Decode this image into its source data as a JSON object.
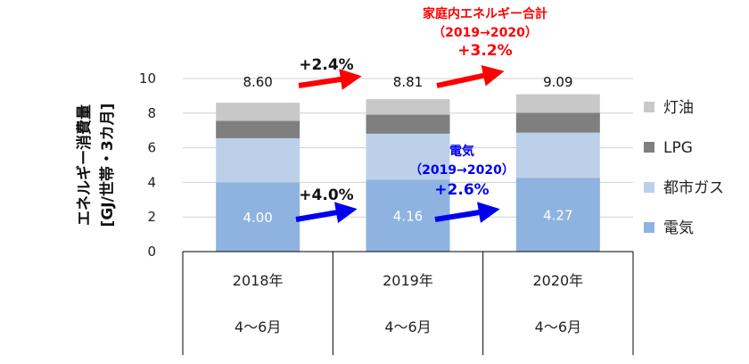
{
  "chart_data": {
    "type": "bar",
    "stacked": true,
    "ylabel_lines": [
      "エネルギー消費量",
      "[GJ/世帯・3カ月]"
    ],
    "ylim": [
      0,
      10
    ],
    "yticks": [
      0,
      2,
      4,
      6,
      8,
      10
    ],
    "categories": [
      {
        "year": "2018年",
        "period": "4〜6月"
      },
      {
        "year": "2019年",
        "period": "4〜6月"
      },
      {
        "year": "2020年",
        "period": "4〜6月"
      }
    ],
    "series": [
      {
        "name": "電気",
        "color": "#8eb3e0",
        "values": [
          4.0,
          4.16,
          4.27
        ],
        "labels": [
          "4.00",
          "4.16",
          "4.27"
        ]
      },
      {
        "name": "都市ガス",
        "color": "#bdd0ea",
        "values": [
          2.55,
          2.65,
          2.6
        ]
      },
      {
        "name": "LPG",
        "color": "#7f7f7f",
        "values": [
          1.0,
          1.1,
          1.15
        ]
      },
      {
        "name": "灯油",
        "color": "#c8c8c8",
        "values": [
          1.05,
          0.9,
          1.07
        ]
      }
    ],
    "totals": [
      "8.60",
      "8.81",
      "9.09"
    ],
    "legend_order": [
      "灯油",
      "LPG",
      "都市ガス",
      "電気"
    ],
    "legend_position": "right",
    "annotations": {
      "total_title_lines": [
        "家庭内エネルギー合計",
        "（2019→2020）",
        "+3.2%"
      ],
      "total_change_2018_2019": "+2.4%",
      "elec_title_lines": [
        "電気",
        "（2019→2020）",
        "+2.6%"
      ],
      "elec_change_2018_2019": "+4.0%"
    }
  }
}
